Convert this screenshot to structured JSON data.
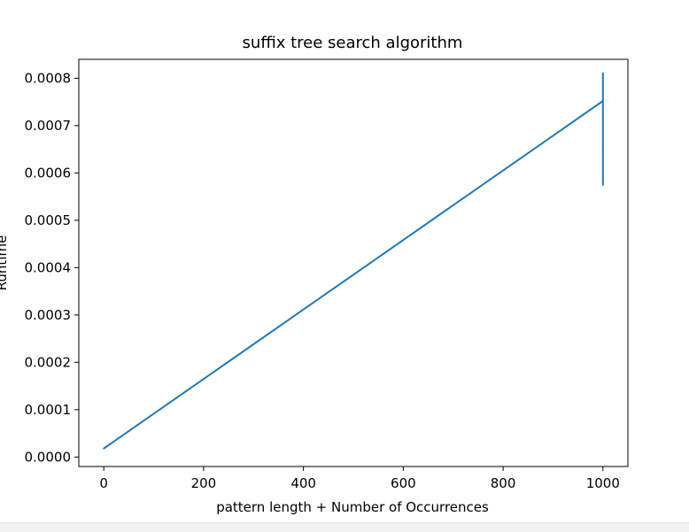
{
  "chart_data": {
    "type": "line",
    "title": "suffix tree search algorithm",
    "xlabel": "pattern length + Number of Occurrences",
    "ylabel": "Runtime",
    "xlim": [
      -50,
      1050
    ],
    "ylim": [
      -2e-05,
      0.00084
    ],
    "x_ticks": [
      0,
      200,
      400,
      600,
      800,
      1000
    ],
    "x_tick_labels": [
      "0",
      "200",
      "400",
      "600",
      "800",
      "1000"
    ],
    "y_ticks": [
      0,
      0.0001,
      0.0002,
      0.0003,
      0.0004,
      0.0005,
      0.0006,
      0.0007,
      0.0008
    ],
    "y_tick_labels": [
      "0.0000",
      "0.0001",
      "0.0002",
      "0.0003",
      "0.0004",
      "0.0005",
      "0.0006",
      "0.0007",
      "0.0008"
    ],
    "grid": false,
    "series": [
      {
        "color": "#1f77b4",
        "x": [
          0,
          1000,
          1000,
          1000,
          1000,
          1000,
          1000
        ],
        "y": [
          1.8e-05,
          0.000752,
          0.00081,
          0.00072,
          0.000575,
          0.00078,
          0.00066
        ]
      }
    ]
  }
}
